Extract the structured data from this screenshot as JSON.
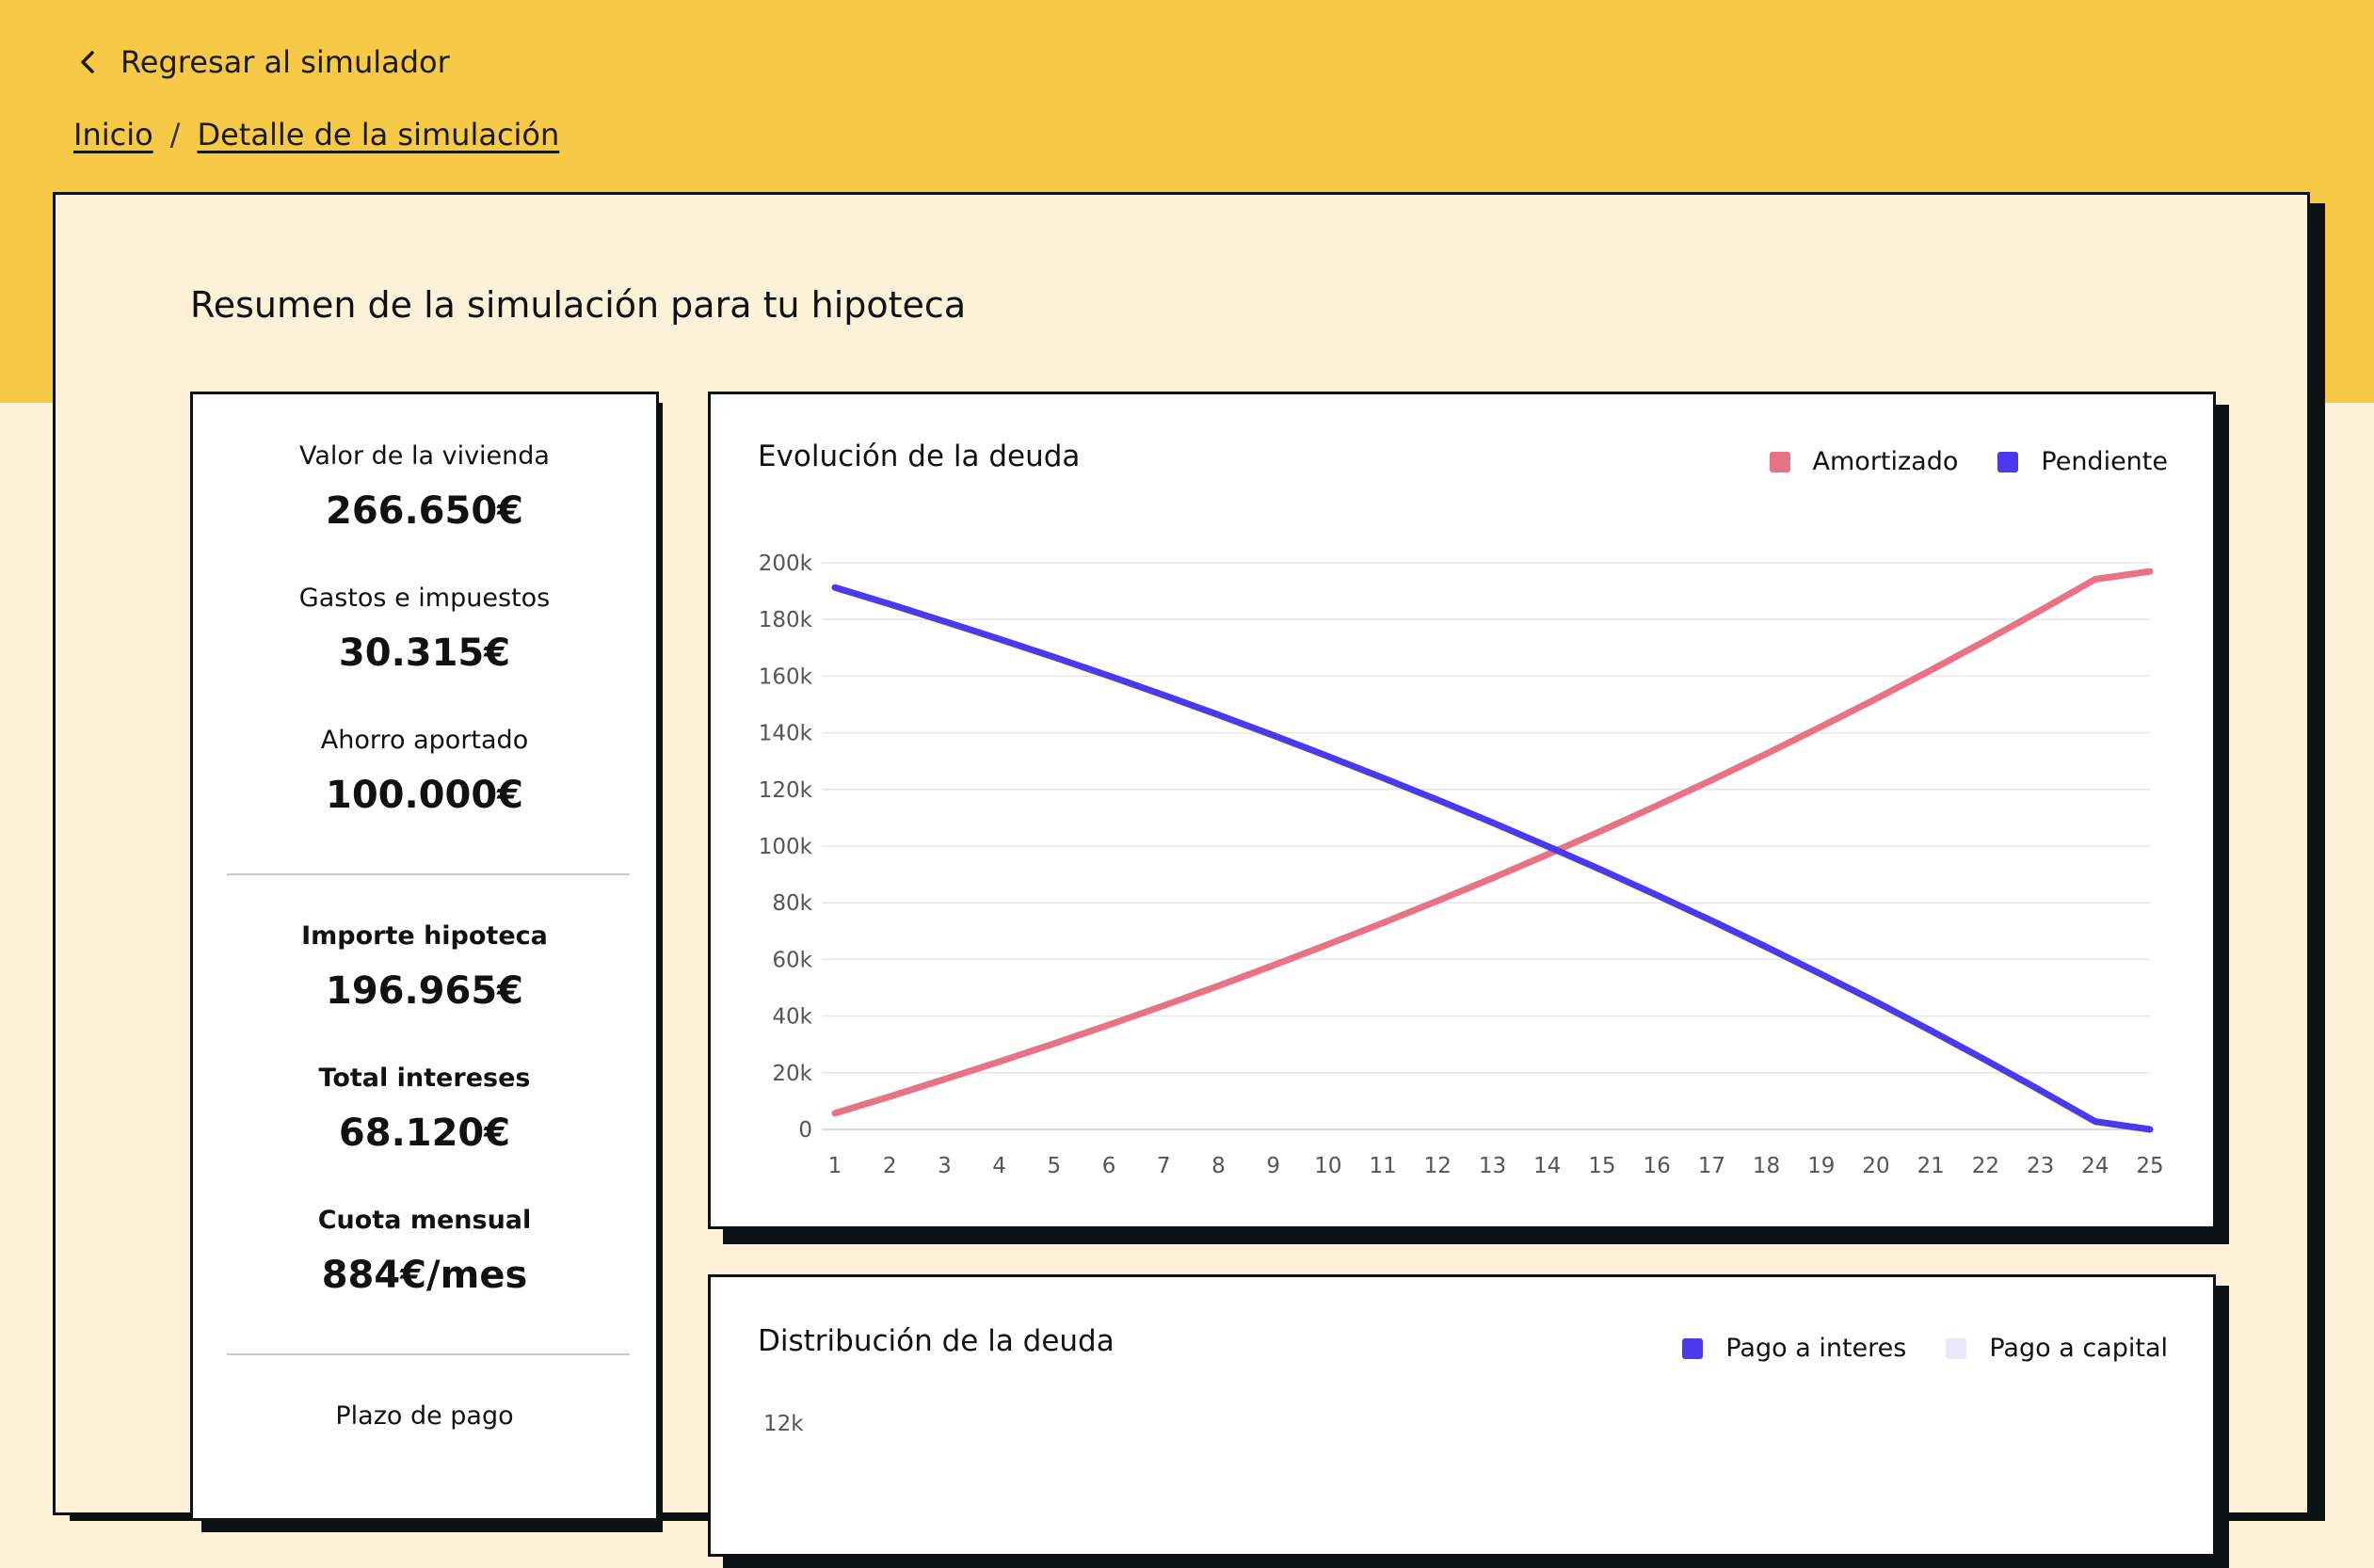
{
  "nav": {
    "back_label": "Regresar al simulador"
  },
  "breadcrumb": {
    "items": [
      "Inicio",
      "Detalle de la simulación"
    ],
    "separator": "/"
  },
  "page": {
    "title": "Resumen de la simulación para tu hipoteca"
  },
  "summary": {
    "vivienda_label": "Valor de la vivienda",
    "vivienda_value": "266.650€",
    "gastos_label": "Gastos e impuestos",
    "gastos_value": "30.315€",
    "ahorro_label": "Ahorro aportado",
    "ahorro_value": "100.000€",
    "hipoteca_label": "Importe hipoteca",
    "hipoteca_value": "196.965€",
    "intereses_label": "Total intereses",
    "intereses_value": "68.120€",
    "cuota_label": "Cuota mensual",
    "cuota_value": "884€/mes",
    "plazo_label": "Plazo de pago"
  },
  "colors": {
    "accent_yellow": "#f6c946",
    "cream": "#fdf2d9",
    "amortizado": "#e97386",
    "pendiente": "#4b39ee",
    "capital": "#ebe6fb",
    "border": "#0c1114"
  },
  "chart_data": [
    {
      "type": "line",
      "title": "Evolución de la deuda",
      "x": [
        1,
        2,
        3,
        4,
        5,
        6,
        7,
        8,
        9,
        10,
        11,
        12,
        13,
        14,
        15,
        16,
        17,
        18,
        19,
        20,
        21,
        22,
        23,
        24,
        25
      ],
      "y_ticks": [
        "0",
        "20k",
        "40k",
        "60k",
        "80k",
        "100k",
        "120k",
        "140k",
        "160k",
        "180k",
        "200k"
      ],
      "ylim": [
        0,
        200000
      ],
      "legend_position": "top-right",
      "grid": true,
      "series": [
        {
          "name": "Amortizado",
          "color": "#e97386",
          "values": [
            5700,
            11600,
            17700,
            23900,
            30300,
            36900,
            43700,
            50700,
            57900,
            65300,
            72900,
            80700,
            88700,
            97000,
            105500,
            114300,
            123300,
            132600,
            142200,
            152000,
            162100,
            172500,
            183200,
            194200,
            196965
          ]
        },
        {
          "name": "Pendiente",
          "color": "#4b39ee",
          "values": [
            191300,
            185400,
            179300,
            173100,
            166700,
            160100,
            153300,
            146300,
            139100,
            131700,
            124100,
            116300,
            108300,
            100000,
            91500,
            82700,
            73700,
            64400,
            54800,
            45000,
            34900,
            24500,
            13800,
            2800,
            0
          ]
        }
      ]
    },
    {
      "type": "bar",
      "title": "Distribución de la deuda",
      "legend_position": "top-right",
      "y_ticks": [
        "12k"
      ],
      "series": [
        {
          "name": "Pago a interes",
          "color": "#4b39ee"
        },
        {
          "name": "Pago a capital",
          "color": "#ebe6fb"
        }
      ]
    }
  ]
}
